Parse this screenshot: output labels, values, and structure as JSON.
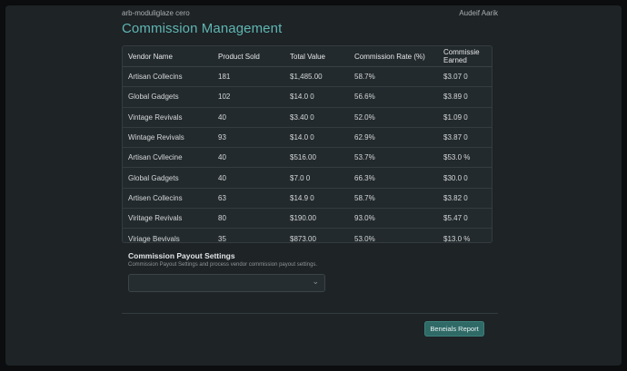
{
  "header": {
    "brand": "arb-moduliglaze cero",
    "user": "Audeif Aarik",
    "title": "Commission Management"
  },
  "table": {
    "columns": [
      "Vendor Name",
      "Product Sold",
      "Total Value",
      "Commission Rate (%)",
      "Commissie Earned"
    ],
    "rows": [
      [
        "Artisan Collecins",
        "181",
        "$1,485.00",
        "58.7%",
        "$3.07 0"
      ],
      [
        "Global Gadgets",
        "102",
        "$14.0 0",
        "56.6%",
        "$3.89 0"
      ],
      [
        "Vintage Revivals",
        "40",
        "$3.40 0",
        "52.0%",
        "$1.09 0"
      ],
      [
        "Wintage Revivals",
        "93",
        "$14.0 0",
        "62.9%",
        "$3.87 0"
      ],
      [
        "Artisan Cvllecine",
        "40",
        "$516.00",
        "53.7%",
        "$53.0 %"
      ],
      [
        "Global Gadgets",
        "40",
        "$7.0 0",
        "66.3%",
        "$30.0 0"
      ],
      [
        "Artisen Collecins",
        "63",
        "$14.9 0",
        "58.7%",
        "$3.82 0"
      ],
      [
        "Viritage Revivals",
        "80",
        "$190.00",
        "93.0%",
        "$5.47 0"
      ],
      [
        "Viriage Bevivals",
        "35",
        "$873.00",
        "53.0%",
        "$13.0 %"
      ]
    ]
  },
  "settings": {
    "title": "Commission Payout Settings",
    "description": "Commission Payout Settings and process vendor commission payout settings.",
    "select_value": ""
  },
  "actions": {
    "report_label": "Beneials Report"
  }
}
